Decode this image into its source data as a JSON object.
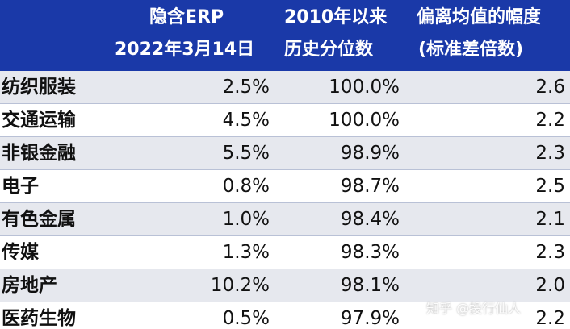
{
  "header": {
    "col1_line1": "隐含ERP",
    "col1_line2": "2022年3月14日",
    "col2_line1": "2010年以来",
    "col2_line2": "历史分位数",
    "col3_line1": "偏离均值的幅度",
    "col3_line2": "(标准差倍数)"
  },
  "rows": [
    {
      "name": "纺织服装",
      "erp": "2.5%",
      "percentile": "100.0%",
      "deviation": "2.6"
    },
    {
      "name": "交通运输",
      "erp": "4.5%",
      "percentile": "100.0%",
      "deviation": "2.2"
    },
    {
      "name": "非银金融",
      "erp": "5.5%",
      "percentile": "98.9%",
      "deviation": "2.3"
    },
    {
      "name": "电子",
      "erp": "0.8%",
      "percentile": "98.7%",
      "deviation": "2.5"
    },
    {
      "name": "有色金属",
      "erp": "1.0%",
      "percentile": "98.4%",
      "deviation": "2.1"
    },
    {
      "name": "传媒",
      "erp": "1.3%",
      "percentile": "98.3%",
      "deviation": "2.3"
    },
    {
      "name": "房地产",
      "erp": "10.2%",
      "percentile": "98.1%",
      "deviation": "2.0"
    },
    {
      "name": "医药生物",
      "erp": "0.5%",
      "percentile": "97.9%",
      "deviation": "2.2"
    }
  ],
  "watermark": "知乎 @投行仙人",
  "colors": {
    "header_bg": "#1a39a8",
    "row_alt_bg": "#e6e8ee"
  }
}
